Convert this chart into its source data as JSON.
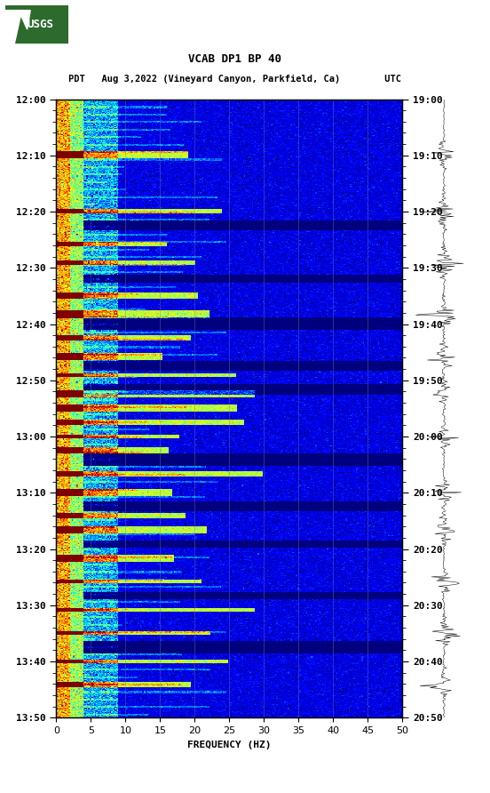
{
  "title_line1": "VCAB DP1 BP 40",
  "title_line2": "PDT   Aug 3,2022 (Vineyard Canyon, Parkfield, Ca)        UTC",
  "left_yticks": [
    "12:00",
    "12:10",
    "12:20",
    "12:30",
    "12:40",
    "12:50",
    "13:00",
    "13:10",
    "13:20",
    "13:30",
    "13:40",
    "13:50"
  ],
  "right_yticks": [
    "19:00",
    "19:10",
    "19:20",
    "19:30",
    "19:40",
    "19:50",
    "20:00",
    "20:10",
    "20:20",
    "20:30",
    "20:40",
    "20:50"
  ],
  "xticks": [
    0,
    5,
    10,
    15,
    20,
    25,
    30,
    35,
    40,
    45,
    50
  ],
  "xlabel": "FREQUENCY (HZ)",
  "freq_min": 0,
  "freq_max": 50,
  "n_times": 660,
  "n_freqs": 300,
  "background_color": "#ffffff",
  "spectrogram_cmap": "jet",
  "logo_color": "#2d6a2d",
  "grid_color": "#888888",
  "grid_alpha": 0.5,
  "event_rows": [
    60,
    120,
    155,
    175,
    210,
    230,
    255,
    275,
    295,
    315,
    330,
    345,
    360,
    375,
    400,
    420,
    445,
    460,
    490,
    515,
    545,
    570,
    600,
    625
  ],
  "dark_rows": [
    135,
    192,
    240,
    285,
    310,
    385,
    435,
    475,
    530,
    585
  ],
  "waveform_spikes": [
    60,
    120,
    175,
    230,
    275,
    315,
    360,
    420,
    460,
    515,
    570,
    625
  ]
}
